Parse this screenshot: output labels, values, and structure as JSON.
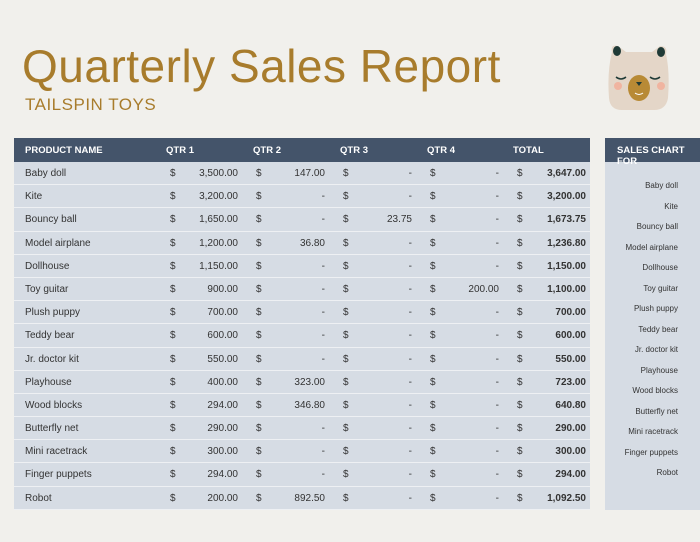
{
  "header": {
    "title": "Quarterly Sales Report",
    "subtitle": "TAILSPIN TOYS",
    "logo_icon": "bear-face-icon"
  },
  "table": {
    "columns": [
      "PRODUCT NAME",
      "QTR 1",
      "QTR 2",
      "QTR 3",
      "QTR 4",
      "TOTAL"
    ],
    "currency": "$",
    "rows": [
      [
        "Baby doll",
        "3,500.00",
        "147.00",
        "-",
        "-",
        "3,647.00"
      ],
      [
        "Kite",
        "3,200.00",
        "-",
        "-",
        "-",
        "3,200.00"
      ],
      [
        "Bouncy ball",
        "1,650.00",
        "-",
        "23.75",
        "-",
        "1,673.75"
      ],
      [
        "Model airplane",
        "1,200.00",
        "36.80",
        "-",
        "-",
        "1,236.80"
      ],
      [
        "Dollhouse",
        "1,150.00",
        "-",
        "-",
        "-",
        "1,150.00"
      ],
      [
        "Toy guitar",
        "900.00",
        "-",
        "-",
        "200.00",
        "1,100.00"
      ],
      [
        "Plush puppy",
        "700.00",
        "-",
        "-",
        "-",
        "700.00"
      ],
      [
        "Teddy bear",
        "600.00",
        "-",
        "-",
        "-",
        "600.00"
      ],
      [
        "Jr. doctor kit",
        "550.00",
        "-",
        "-",
        "-",
        "550.00"
      ],
      [
        "Playhouse",
        "400.00",
        "323.00",
        "-",
        "-",
        "723.00"
      ],
      [
        "Wood blocks",
        "294.00",
        "346.80",
        "-",
        "-",
        "640.80"
      ],
      [
        "Butterfly net",
        "290.00",
        "-",
        "-",
        "-",
        "290.00"
      ],
      [
        "Mini racetrack",
        "300.00",
        "-",
        "-",
        "-",
        "300.00"
      ],
      [
        "Finger puppets",
        "294.00",
        "-",
        "-",
        "-",
        "294.00"
      ],
      [
        "Robot",
        "200.00",
        "892.50",
        "-",
        "-",
        "1,092.50"
      ]
    ]
  },
  "chart": {
    "title": "SALES CHART FOR",
    "labels": [
      "Baby doll",
      "Kite",
      "Bouncy ball",
      "Model airplane",
      "Dollhouse",
      "Toy guitar",
      "Plush puppy",
      "Teddy bear",
      "Jr. doctor kit",
      "Playhouse",
      "Wood blocks",
      "Butterfly net",
      "Mini racetrack",
      "Finger puppets",
      "Robot"
    ]
  },
  "colors": {
    "title": "#a87c2c",
    "header_bg": "#44546a",
    "row_bg": "#d6dce4"
  }
}
